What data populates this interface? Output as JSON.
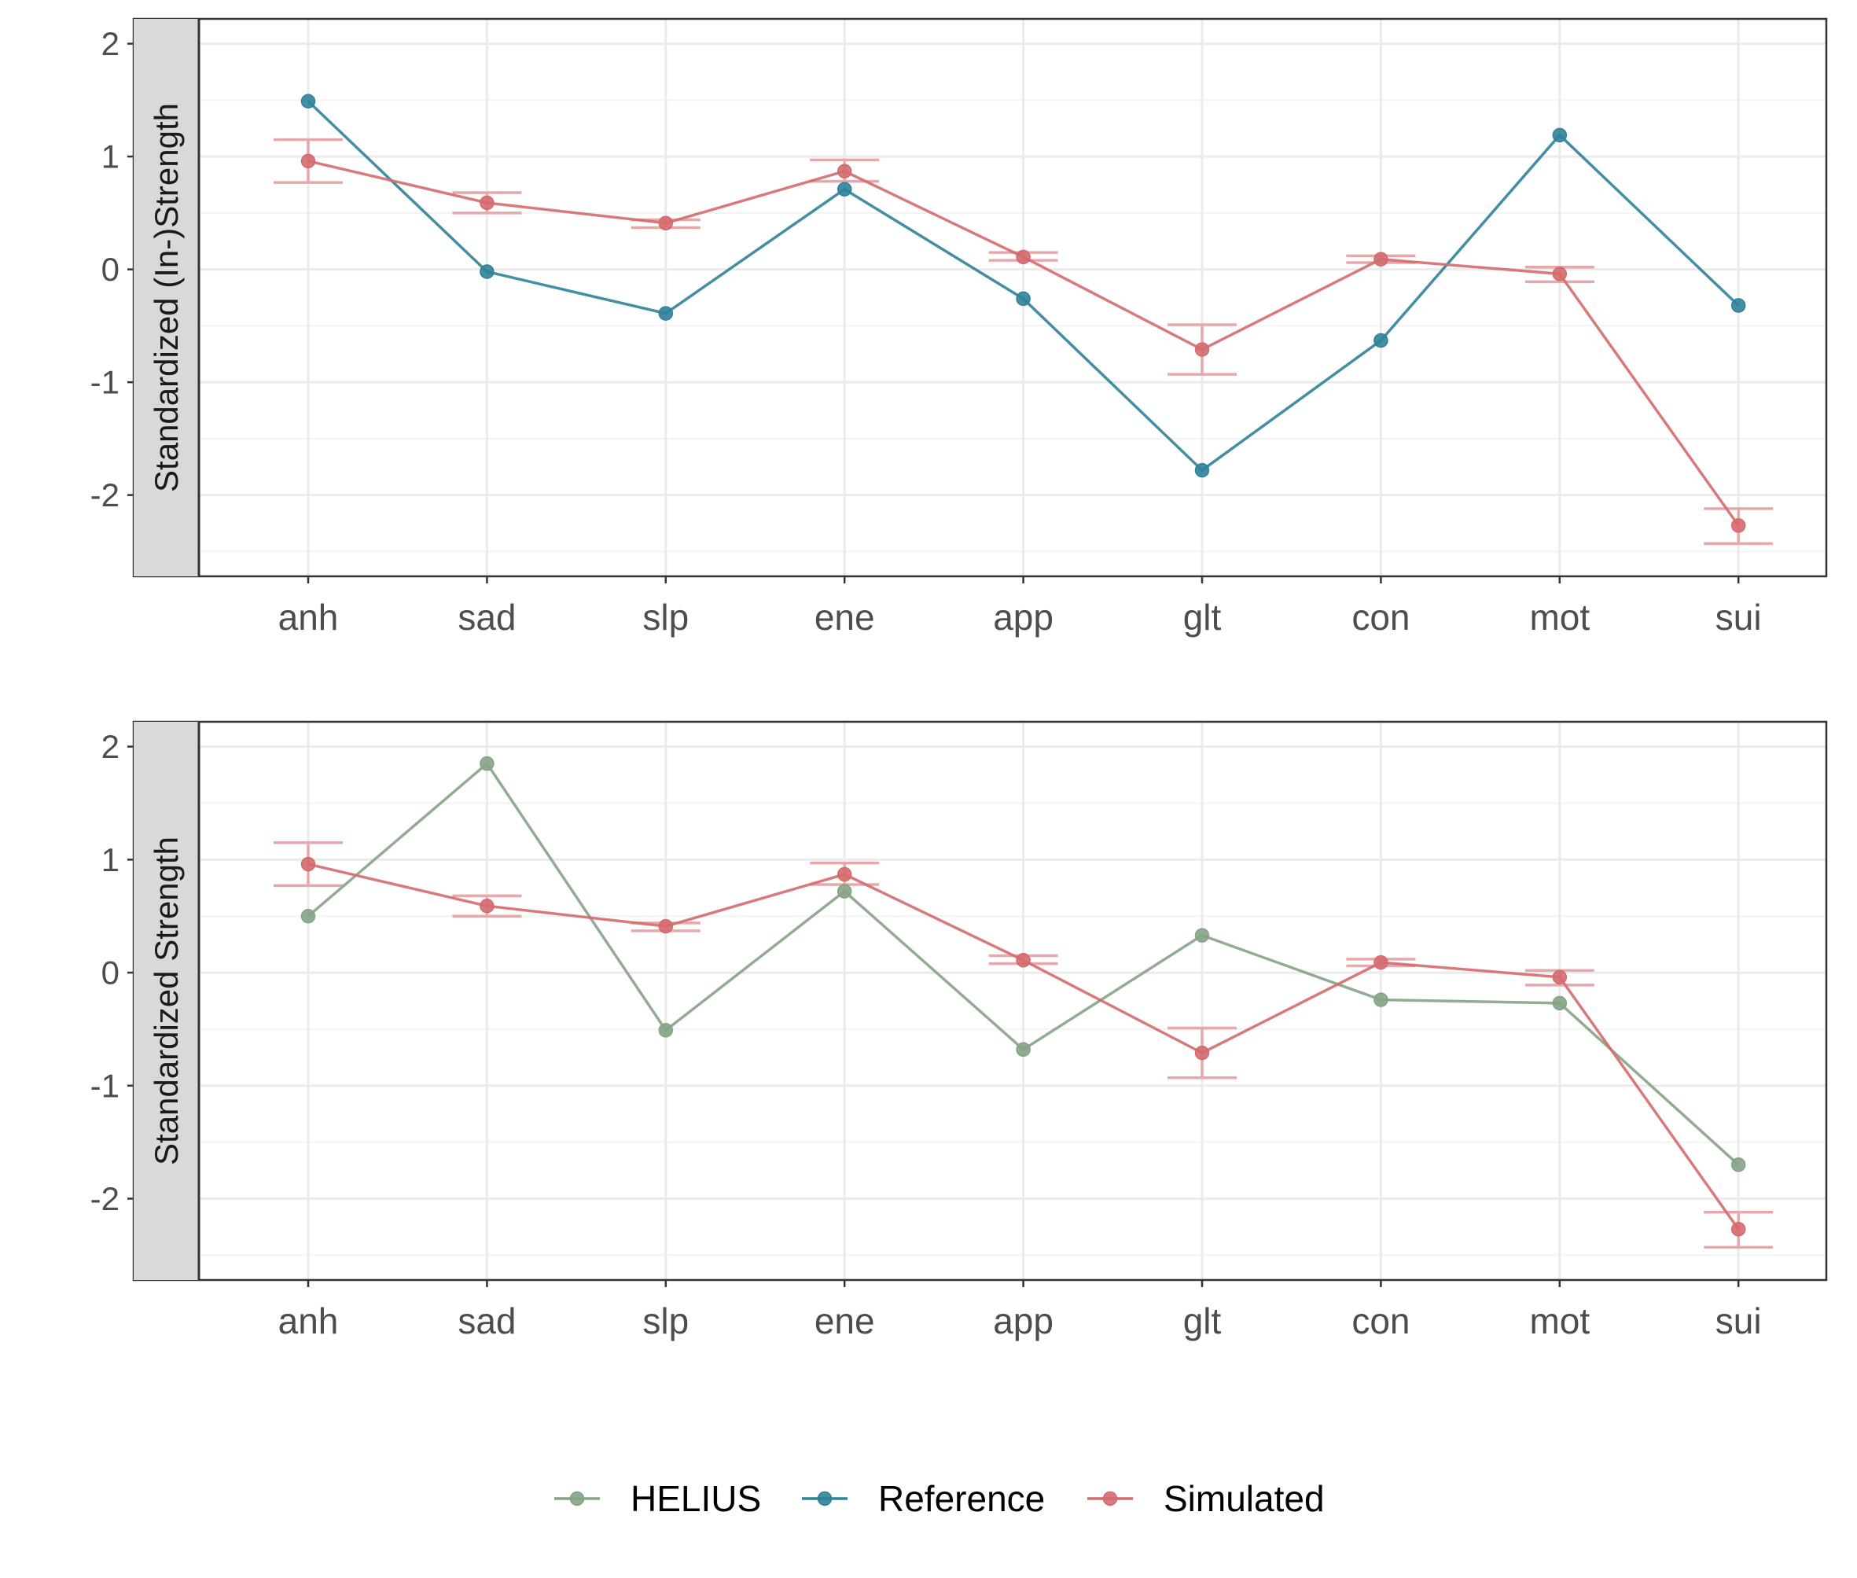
{
  "colors": {
    "HELIUS": "#86A386",
    "Reference": "#2F8298",
    "Simulated": "#D46A6E",
    "error_bar": "#E6A9AB",
    "grid_major": "#EBEBEB",
    "grid_minor": "#F3F3F3",
    "strip_bg": "#D9D9D9",
    "axis_text": "#4D4D4D",
    "border": "#333333"
  },
  "chart_data": [
    {
      "type": "line",
      "title": "",
      "ylabel": "Standardized (In-)Strength",
      "xlabel": "",
      "categories": [
        "anh",
        "sad",
        "slp",
        "ene",
        "app",
        "glt",
        "con",
        "mot",
        "sui"
      ],
      "ylim": [
        -2.72,
        2.22
      ],
      "yticks": [
        2,
        1,
        0,
        -1,
        -2
      ],
      "ytick_labels": [
        "2",
        "1",
        "0",
        "-1",
        "-2"
      ],
      "grid": true,
      "series": [
        {
          "name": "Reference",
          "values": [
            1.49,
            -0.02,
            -0.39,
            0.71,
            -0.26,
            -1.78,
            -0.63,
            1.19,
            -0.32
          ]
        },
        {
          "name": "Simulated",
          "values": [
            0.96,
            0.59,
            0.41,
            0.87,
            0.11,
            -0.71,
            0.09,
            -0.04,
            -2.27
          ],
          "error_low": [
            0.77,
            0.5,
            0.37,
            0.78,
            0.08,
            -0.93,
            0.06,
            -0.11,
            -2.43
          ],
          "error_high": [
            1.15,
            0.68,
            0.44,
            0.97,
            0.15,
            -0.49,
            0.12,
            0.02,
            -2.12
          ]
        }
      ]
    },
    {
      "type": "line",
      "title": "",
      "ylabel": "Standardized Strength",
      "xlabel": "",
      "categories": [
        "anh",
        "sad",
        "slp",
        "ene",
        "app",
        "glt",
        "con",
        "mot",
        "sui"
      ],
      "ylim": [
        -2.72,
        2.22
      ],
      "yticks": [
        2,
        1,
        0,
        -1,
        -2
      ],
      "ytick_labels": [
        "2",
        "1",
        "0",
        "-1",
        "-2"
      ],
      "grid": true,
      "series": [
        {
          "name": "HELIUS",
          "values": [
            0.5,
            1.85,
            -0.51,
            0.72,
            -0.68,
            0.33,
            -0.24,
            -0.27,
            -1.7
          ]
        },
        {
          "name": "Simulated",
          "values": [
            0.96,
            0.59,
            0.41,
            0.87,
            0.11,
            -0.71,
            0.09,
            -0.04,
            -2.27
          ],
          "error_low": [
            0.77,
            0.5,
            0.37,
            0.78,
            0.08,
            -0.93,
            0.06,
            -0.11,
            -2.43
          ],
          "error_high": [
            1.15,
            0.68,
            0.44,
            0.97,
            0.15,
            -0.49,
            0.12,
            0.02,
            -2.12
          ]
        }
      ]
    }
  ],
  "legend": {
    "position": "bottom",
    "items": [
      "HELIUS",
      "Reference",
      "Simulated"
    ]
  }
}
